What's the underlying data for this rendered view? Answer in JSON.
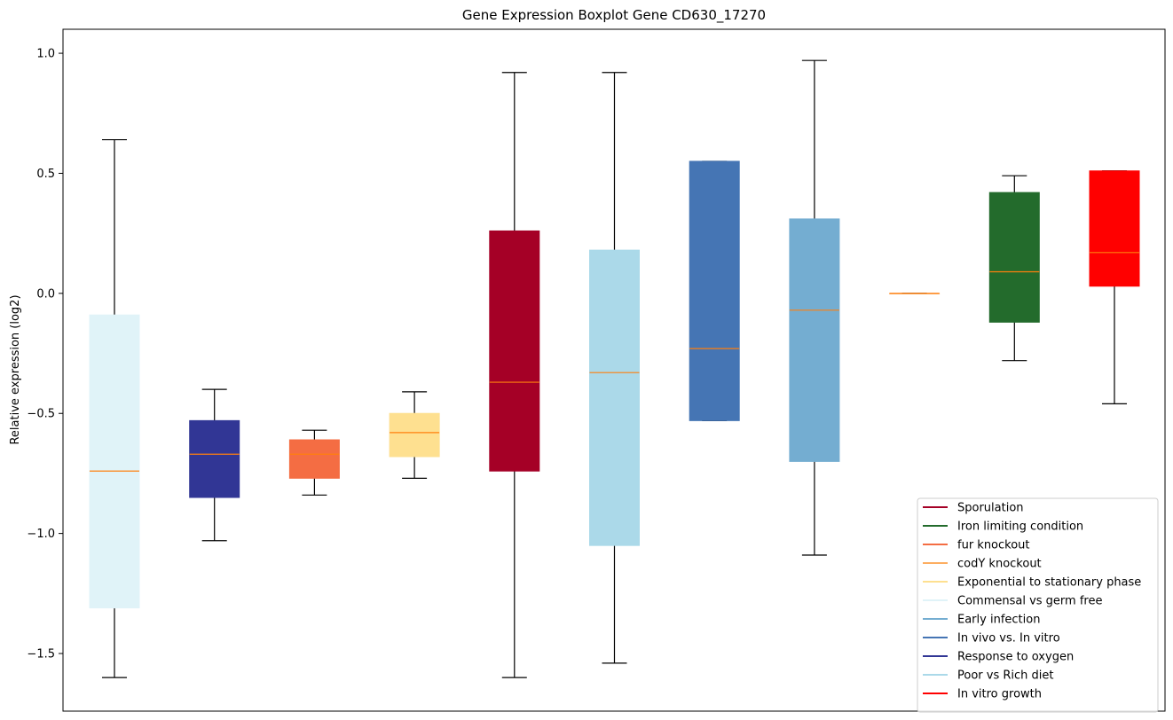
{
  "chart_data": {
    "type": "boxplot",
    "title": "Gene Expression Boxplot Gene CD630_17270",
    "xlabel": "",
    "ylabel": "Relative expression (log2)",
    "ylim": [
      -1.74,
      1.1
    ],
    "yticks": [
      1.0,
      0.5,
      0.0,
      -0.5,
      -1.0,
      -1.5
    ],
    "ytick_labels": [
      "1.0",
      "0.5",
      "0.0",
      "−0.5",
      "−1.0",
      "−1.5"
    ],
    "median_color": "#ff7f0e",
    "boxes": [
      {
        "group": "Commensal vs germ free",
        "color": "#e0f3f8",
        "whisker_low": -1.6,
        "q1": -1.31,
        "median": -0.74,
        "q3": -0.09,
        "whisker_high": 0.64
      },
      {
        "group": "Response to oxygen",
        "color": "#313695",
        "whisker_low": -1.03,
        "q1": -0.85,
        "median": -0.67,
        "q3": -0.53,
        "whisker_high": -0.4
      },
      {
        "group": "fur knockout",
        "color": "#f46d43",
        "whisker_low": -0.84,
        "q1": -0.77,
        "median": -0.67,
        "q3": -0.61,
        "whisker_high": -0.57
      },
      {
        "group": "Exponential to stationary phase",
        "color": "#fee090",
        "whisker_low": -0.77,
        "q1": -0.68,
        "median": -0.58,
        "q3": -0.5,
        "whisker_high": -0.41
      },
      {
        "group": "Sporulation",
        "color": "#a50026",
        "whisker_low": -1.6,
        "q1": -0.74,
        "median": -0.37,
        "q3": 0.26,
        "whisker_high": 0.92
      },
      {
        "group": "Poor vs Rich diet",
        "color": "#abd9e9",
        "whisker_low": -1.54,
        "q1": -1.05,
        "median": -0.33,
        "q3": 0.18,
        "whisker_high": 0.92
      },
      {
        "group": "In vivo vs. In vitro",
        "color": "#4575b4",
        "whisker_low": -0.53,
        "q1": -0.53,
        "median": -0.23,
        "q3": 0.55,
        "whisker_high": 0.55
      },
      {
        "group": "Early infection",
        "color": "#74add1",
        "whisker_low": -1.09,
        "q1": -0.7,
        "median": -0.07,
        "q3": 0.31,
        "whisker_high": 0.97
      },
      {
        "group": "codY knockout",
        "color": "#fdae61",
        "whisker_low": 0.0,
        "q1": 0.0,
        "median": 0.0,
        "q3": 0.0,
        "whisker_high": 0.0
      },
      {
        "group": "Iron limiting condition",
        "color": "#236b2c",
        "whisker_low": -0.28,
        "q1": -0.12,
        "median": 0.09,
        "q3": 0.42,
        "whisker_high": 0.49
      },
      {
        "group": "In vitro growth",
        "color": "#ff0000",
        "whisker_low": -0.46,
        "q1": 0.03,
        "median": 0.17,
        "q3": 0.51,
        "whisker_high": 0.51
      }
    ],
    "legend": {
      "position": "lower-right",
      "entries": [
        {
          "label": "Sporulation",
          "color": "#a50026"
        },
        {
          "label": "Iron limiting condition",
          "color": "#236b2c"
        },
        {
          "label": "fur knockout",
          "color": "#f46d43"
        },
        {
          "label": "codY knockout",
          "color": "#fdae61"
        },
        {
          "label": "Exponential to stationary phase",
          "color": "#fee090"
        },
        {
          "label": "Commensal vs germ free",
          "color": "#e0f3f8"
        },
        {
          "label": "Early infection",
          "color": "#74add1"
        },
        {
          "label": "In vivo vs. In vitro",
          "color": "#4575b4"
        },
        {
          "label": "Response to oxygen",
          "color": "#313695"
        },
        {
          "label": "Poor vs Rich diet",
          "color": "#abd9e9"
        },
        {
          "label": "In vitro growth",
          "color": "#ff0000"
        }
      ]
    }
  }
}
